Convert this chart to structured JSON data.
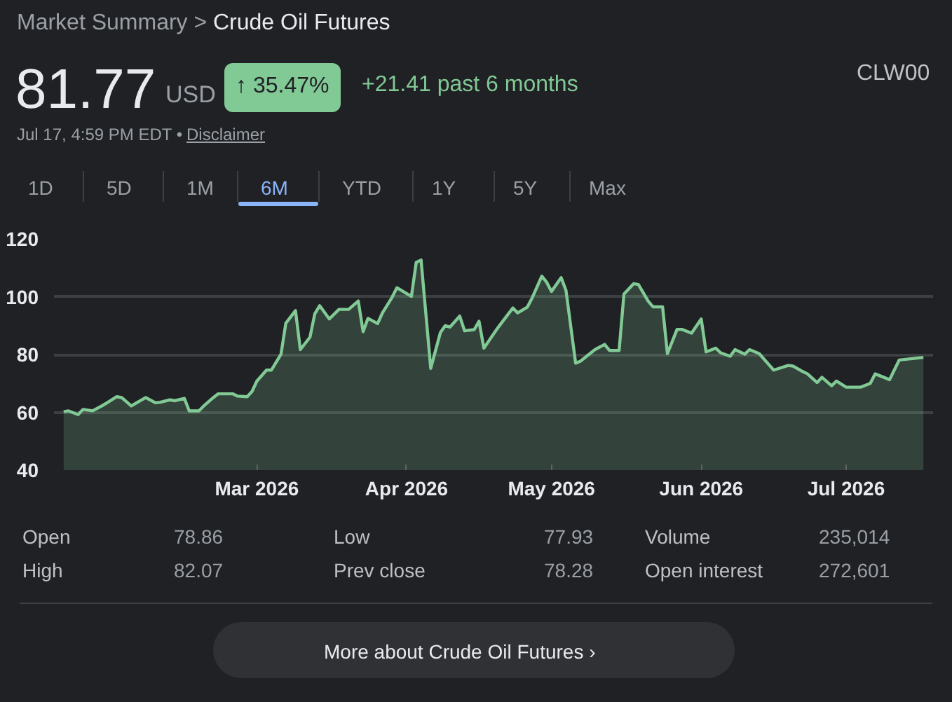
{
  "chart_data": {
    "type": "area",
    "title": "Crude Oil Futures",
    "annotations": [
      "Market Summary >",
      "81.77",
      "USD",
      "↑ 35.47%",
      "+21.41 past 6 months",
      "CLW00",
      "Jul 17, 4:59 PM EDT •",
      "Disclaimer",
      "1D",
      "5D",
      "1M",
      "6M",
      "YTD",
      "1Y",
      "5Y",
      "Max",
      "Open",
      "78.86",
      "High",
      "82.07",
      "Low",
      "77.93",
      "Prev close",
      "78.28",
      "Volume",
      "235,014",
      "Open interest",
      "272,601",
      "More about Crude Oil Futures ›"
    ],
    "x": [
      "2026-01-20",
      "2026-01-21",
      "2026-01-23",
      "2026-01-24",
      "2026-01-26",
      "2026-01-28",
      "2026-01-29",
      "2026-01-31",
      "2026-02-01",
      "2026-02-03",
      "2026-02-04",
      "2026-02-06",
      "2026-02-08",
      "2026-02-09",
      "2026-02-11",
      "2026-02-12",
      "2026-02-14",
      "2026-02-15",
      "2026-02-17",
      "2026-02-18",
      "2026-02-20",
      "2026-02-21",
      "2026-02-24",
      "2026-02-25",
      "2026-02-27",
      "2026-02-28",
      "2026-03-01",
      "2026-03-03",
      "2026-03-04",
      "2026-03-06",
      "2026-03-07",
      "2026-03-09",
      "2026-03-10",
      "2026-03-12",
      "2026-03-13",
      "2026-03-14",
      "2026-03-16",
      "2026-03-18",
      "2026-03-20",
      "2026-03-22",
      "2026-03-23",
      "2026-03-24",
      "2026-03-26",
      "2026-03-27",
      "2026-03-29",
      "2026-03-30",
      "2026-04-02",
      "2026-04-03",
      "2026-04-04",
      "2026-04-06",
      "2026-04-08",
      "2026-04-09",
      "2026-04-10",
      "2026-04-12",
      "2026-04-13",
      "2026-04-15",
      "2026-04-16",
      "2026-04-17",
      "2026-04-19",
      "2026-04-20",
      "2026-04-23",
      "2026-04-24",
      "2026-04-26",
      "2026-04-27",
      "2026-04-29",
      "2026-04-30",
      "2026-05-01",
      "2026-05-03",
      "2026-05-04",
      "2026-05-06",
      "2026-05-07",
      "2026-05-10",
      "2026-05-12",
      "2026-05-13",
      "2026-05-15",
      "2026-05-16",
      "2026-05-18",
      "2026-05-19",
      "2026-05-21",
      "2026-05-22",
      "2026-05-24",
      "2026-05-25",
      "2026-05-27",
      "2026-05-28",
      "2026-05-30",
      "2026-06-01",
      "2026-06-02",
      "2026-06-04",
      "2026-06-05",
      "2026-06-07",
      "2026-06-08",
      "2026-06-10",
      "2026-06-11",
      "2026-06-13",
      "2026-06-16",
      "2026-06-19",
      "2026-06-20",
      "2026-06-22",
      "2026-06-23",
      "2026-06-25",
      "2026-06-26",
      "2026-06-28",
      "2026-06-29",
      "2026-07-01",
      "2026-07-04",
      "2026-07-06",
      "2026-07-07",
      "2026-07-10",
      "2026-07-12",
      "2026-07-17"
    ],
    "series": [
      {
        "color": "#81c995",
        "values": [
          60.2,
          60.5,
          59.2,
          61,
          60.5,
          62.3,
          63.3,
          65.4,
          65.1,
          62.2,
          63.2,
          65.1,
          63.3,
          63.5,
          64.3,
          64,
          64.8,
          60.5,
          60.5,
          62.2,
          65.1,
          66.4,
          66.4,
          65.6,
          65.4,
          67.2,
          70.8,
          74.6,
          74.6,
          80.1,
          90.8,
          95.2,
          81.7,
          86,
          94.1,
          96.9,
          92.3,
          95.6,
          95.6,
          98.5,
          87.9,
          92.5,
          90.7,
          94.4,
          99.8,
          103.1,
          100.1,
          111.9,
          112.7,
          75.2,
          87.6,
          90,
          89.5,
          93.3,
          88.2,
          88.6,
          91.5,
          82.2,
          87.1,
          89.5,
          96.1,
          94.4,
          96.4,
          99.6,
          107.1,
          105,
          101.8,
          106.6,
          102.2,
          77,
          77.7,
          81.7,
          83.5,
          81.4,
          81.4,
          100.9,
          104.5,
          104.2,
          98.5,
          96.5,
          96.5,
          80.3,
          88.7,
          88.7,
          87.4,
          92.3,
          80.9,
          82.2,
          80.6,
          79.4,
          81.7,
          80.1,
          81.7,
          80.3,
          74.6,
          76.2,
          76,
          74.1,
          73.3,
          70.3,
          72.1,
          69.2,
          70.8,
          68.7,
          68.7,
          70,
          73.3,
          71.3,
          78.1,
          79
        ]
      }
    ],
    "xlim": [
      "2026-01-18",
      "2026-07-19"
    ],
    "xticks": [
      {
        "value": "2026-03-01",
        "label": "Mar 2026"
      },
      {
        "value": "2026-04-01",
        "label": "Apr 2026"
      },
      {
        "value": "2026-05-01",
        "label": "May 2026"
      },
      {
        "value": "2026-06-01",
        "label": "Jun 2026"
      },
      {
        "value": "2026-07-01",
        "label": "Jul 2026"
      }
    ],
    "ylim": [
      40,
      120
    ],
    "yticks": [
      40,
      60,
      80,
      100,
      120
    ],
    "grid": "y"
  }
}
